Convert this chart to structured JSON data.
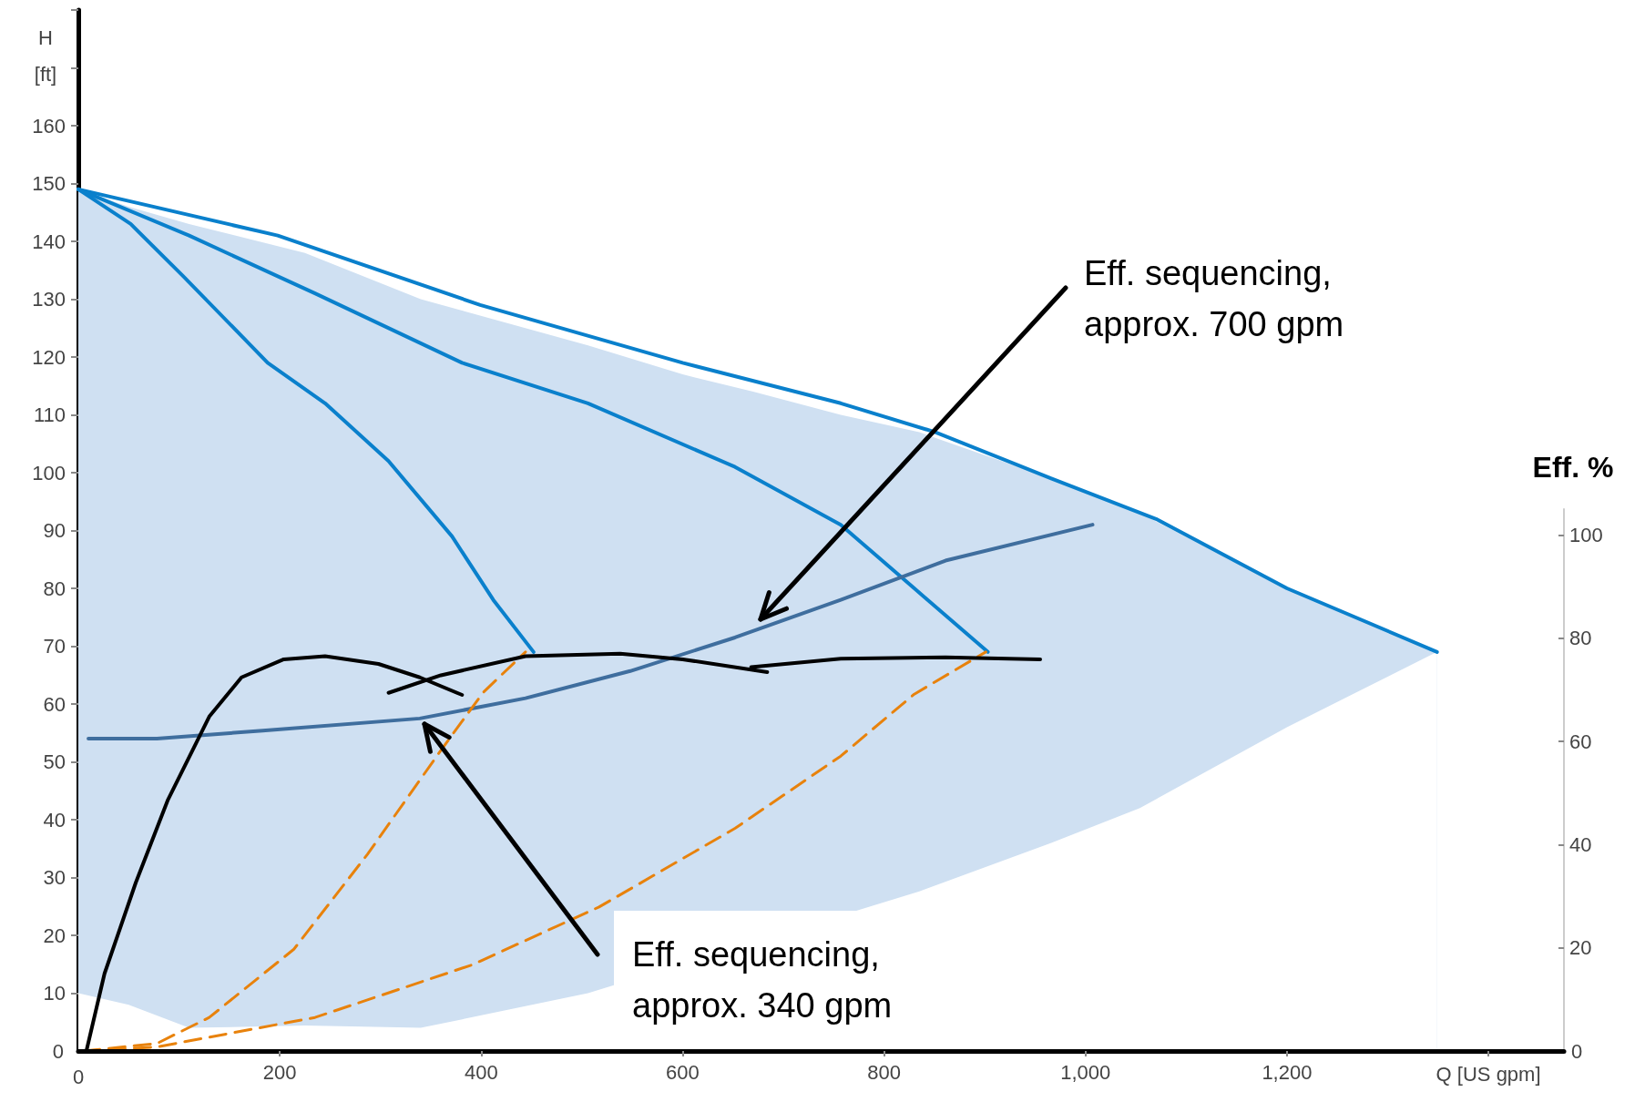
{
  "chart_data": {
    "type": "line",
    "xlabel": "Q [US gpm]",
    "ylabel": "H\n[ft]",
    "y2label": "Eff. %",
    "xlim": [
      0,
      1475
    ],
    "xticks": [
      0,
      200,
      400,
      600,
      800,
      {
        "value": 1000,
        "label": "1,000"
      },
      {
        "value": 1200,
        "label": "1,200"
      },
      {
        "value": 1400,
        "label": null
      }
    ],
    "ylim": [
      0,
      180
    ],
    "yticks": [
      0,
      10,
      20,
      30,
      40,
      50,
      60,
      70,
      80,
      90,
      100,
      110,
      120,
      130,
      140,
      150,
      160,
      {
        "value": 170,
        "label": null
      },
      {
        "value": 180,
        "label": null
      }
    ],
    "y2lim": [
      0,
      105
    ],
    "y2ticks": [
      0,
      20,
      40,
      60,
      80,
      100
    ],
    "grid": false,
    "marker": "none",
    "series": [
      {
        "type": "area",
        "color": "#cfe0f2",
        "x": [
          0,
          50,
          110,
          225,
          340,
          506,
          600,
          670,
          757,
          835,
          966,
          1054,
          1200,
          1349
        ],
        "values": [
          149,
          146,
          143,
          138,
          130,
          122,
          117,
          114,
          110,
          107,
          99,
          93,
          80,
          69
        ]
      },
      {
        "type": "area",
        "color": "#ffffff",
        "x": [
          0,
          50,
          110,
          225,
          340,
          506,
          600,
          670,
          757,
          835,
          966,
          1054,
          1200,
          1349
        ],
        "values": [
          10,
          8,
          4,
          4.4,
          4,
          10,
          null,
          null,
          null,
          27.6,
          36,
          42,
          56,
          69
        ]
      },
      {
        "color": "#0a80cc",
        "x": [
          0,
          198,
          399,
          600,
          757,
          851,
          966,
          1070,
          1200,
          1349
        ],
        "values": [
          149,
          141,
          129,
          119,
          112,
          107,
          99,
          92,
          80,
          69
        ]
      },
      {
        "color": "#0a80cc",
        "x": [
          0,
          110,
          235,
          381,
          506,
          652,
          757,
          830,
          903
        ],
        "values": [
          149,
          141,
          131,
          119,
          112,
          101,
          91,
          80,
          69
        ]
      },
      {
        "color": "#0a80cc",
        "x": [
          0,
          52,
          104,
          188,
          245,
          308,
          371,
          412,
          452
        ],
        "values": [
          149,
          143,
          134,
          119,
          112,
          102,
          89,
          78,
          69
        ]
      },
      {
        "color": "#3f6e9e",
        "x": [
          10,
          78,
          183,
          339,
          444,
          548,
          652,
          757,
          861,
          1007
        ],
        "values": [
          54,
          54,
          55.4,
          57.5,
          61,
          65.7,
          71.5,
          78,
          84.8,
          91
        ]
      },
      {
        "color": "#e8820c",
        "line_style": "dashed",
        "x": [
          5,
          78,
          130,
          214,
          287,
          360,
          402,
          444
        ],
        "values": [
          0,
          1.3,
          5.8,
          17.6,
          34,
          52,
          62,
          69
        ]
      },
      {
        "color": "#e8820c",
        "line_style": "dashed",
        "x": [
          5,
          78,
          235,
          391,
          517,
          652,
          757,
          830,
          901
        ],
        "values": [
          0,
          0.7,
          5.8,
          14.9,
          24.9,
          38.5,
          51,
          61.7,
          69
        ]
      },
      {
        "color": "#000000",
        "axis": "y2",
        "x": [
          8,
          26,
          57,
          89,
          130,
          162,
          204,
          245,
          298,
          339,
          381
        ],
        "values": [
          0,
          15,
          32.6,
          48.7,
          64.8,
          72.4,
          75.9,
          76.5,
          75,
          72.4,
          69
        ]
      },
      {
        "color": "#000000",
        "axis": "y2",
        "x": [
          308,
          360,
          444,
          538,
          600,
          684
        ],
        "values": [
          69.4,
          72.8,
          76.5,
          77,
          75.9,
          73.4
        ]
      },
      {
        "color": "#000000",
        "axis": "y2",
        "x": [
          668,
          757,
          861,
          955
        ],
        "values": [
          74.4,
          76,
          76.3,
          75.9
        ]
      }
    ],
    "annotations": [
      "Eff. sequencing,\napprox. 700 gpm",
      "Eff. sequencing,\napprox. 340 gpm"
    ]
  }
}
